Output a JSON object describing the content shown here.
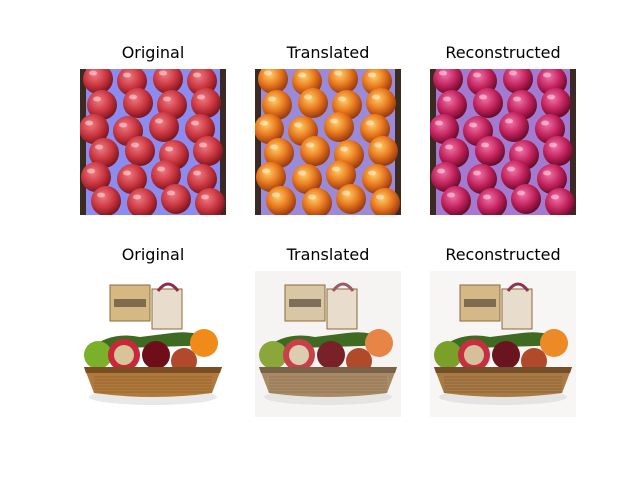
{
  "figure": {
    "rows": [
      {
        "titles": [
          "Original",
          "Translated",
          "Reconstructed"
        ]
      },
      {
        "titles": [
          "Original",
          "Translated",
          "Reconstructed"
        ]
      }
    ]
  },
  "colors": {
    "apple_red": "#c8343e",
    "apple_orange": "#e8781e",
    "apple_magenta": "#c0205a",
    "tray_blue": "#8c8cf0",
    "tray_blue_translated": "#9a8ad8",
    "tray_blue_reconstructed": "#a47ad0",
    "crate_dark": "#3a2a22",
    "basket_brown": "#b07a3c"
  }
}
